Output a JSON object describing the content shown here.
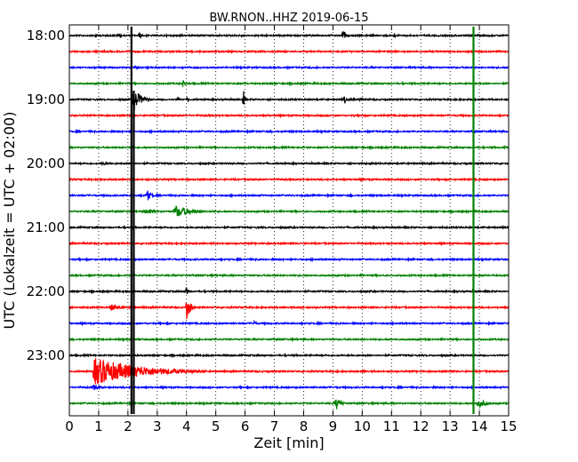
{
  "chart_data": {
    "type": "line",
    "title": "BW.RNON..HHZ 2019-06-15",
    "xlabel": "Zeit  [min]",
    "ylabel": "UTC (Lokalzeit = UTC + 02:00)",
    "xlim": [
      0,
      15
    ],
    "x_ticks": [
      "0",
      "1",
      "2",
      "3",
      "4",
      "5",
      "6",
      "7",
      "8",
      "9",
      "10",
      "11",
      "12",
      "13",
      "14",
      "15"
    ],
    "y_ticks": [
      "18:00",
      "19:00",
      "20:00",
      "21:00",
      "22:00",
      "23:00"
    ],
    "trace_interval_min": 15,
    "grid": "vertical dotted",
    "colors": [
      "#000000",
      "#ff0000",
      "#0000ff",
      "#008000"
    ],
    "traces": [
      {
        "start": "18:00",
        "events": [
          {
            "t": 0.9,
            "amp": 0.9,
            "dur": 0.1
          },
          {
            "t": 1.7,
            "amp": 0.6,
            "dur": 0.2
          },
          {
            "t": 2.4,
            "amp": 0.9,
            "dur": 0.15
          },
          {
            "t": 3.2,
            "amp": 0.3,
            "dur": 0.6
          },
          {
            "t": 3.8,
            "amp": 0.9,
            "dur": 0.1
          },
          {
            "t": 5.9,
            "amp": 0.5,
            "dur": 0.1
          },
          {
            "t": 8.3,
            "amp": 0.5,
            "dur": 0.1
          },
          {
            "t": 9.35,
            "amp": 2.0,
            "dur": 0.15
          },
          {
            "t": 11.1,
            "amp": 1.4,
            "dur": 0.05
          },
          {
            "t": 11.5,
            "amp": 0.3,
            "dur": 0.3
          }
        ]
      },
      {
        "start": "18:15",
        "events": [
          {
            "t": 6.3,
            "amp": 0.3,
            "dur": 0.1
          }
        ]
      },
      {
        "start": "18:30",
        "events": [
          {
            "t": 1.45,
            "amp": 0.3,
            "dur": 0.2
          },
          {
            "t": 2.3,
            "amp": 0.7,
            "dur": 0.1
          }
        ]
      },
      {
        "start": "18:45",
        "events": [
          {
            "t": 3.9,
            "amp": 2.0,
            "dur": 0.1
          },
          {
            "t": 8.1,
            "amp": 0.3,
            "dur": 0.2
          }
        ]
      },
      {
        "start": "19:00",
        "events": [
          {
            "t": 2.2,
            "amp": 2.8,
            "dur": 0.6
          },
          {
            "t": 3.7,
            "amp": 0.9,
            "dur": 0.1
          },
          {
            "t": 4.05,
            "amp": 0.8,
            "dur": 0.1
          },
          {
            "t": 5.95,
            "amp": 2.2,
            "dur": 0.1
          },
          {
            "t": 9.4,
            "amp": 1.5,
            "dur": 0.1
          },
          {
            "t": 9.7,
            "amp": 0.8,
            "dur": 0.1
          },
          {
            "t": 9.95,
            "amp": 0.9,
            "dur": 0.1
          }
        ]
      },
      {
        "start": "19:15",
        "events": []
      },
      {
        "start": "19:30",
        "events": []
      },
      {
        "start": "19:45",
        "events": [
          {
            "t": 1.6,
            "amp": 0.3,
            "dur": 0.1
          },
          {
            "t": 14.9,
            "amp": 0.6,
            "dur": 0.15
          }
        ]
      },
      {
        "start": "20:00",
        "events": [
          {
            "t": 1.1,
            "amp": 0.4,
            "dur": 1.2
          },
          {
            "t": 10.3,
            "amp": 0.6,
            "dur": 0.1
          }
        ]
      },
      {
        "start": "20:15",
        "events": [
          {
            "t": 2.7,
            "amp": 0.3,
            "dur": 0.1
          },
          {
            "t": 7.0,
            "amp": 0.4,
            "dur": 0.3
          }
        ]
      },
      {
        "start": "20:30",
        "events": [
          {
            "t": 2.65,
            "amp": 1.7,
            "dur": 0.3
          },
          {
            "t": 9.6,
            "amp": 0.4,
            "dur": 0.1
          },
          {
            "t": 10.8,
            "amp": 0.3,
            "dur": 0.1
          }
        ]
      },
      {
        "start": "20:45",
        "events": [
          {
            "t": 2.6,
            "amp": 0.8,
            "dur": 0.9
          },
          {
            "t": 3.6,
            "amp": 1.6,
            "dur": 1.4
          }
        ]
      },
      {
        "start": "21:00",
        "events": [
          {
            "t": 6.6,
            "amp": 0.5,
            "dur": 0.1
          }
        ]
      },
      {
        "start": "21:15",
        "events": []
      },
      {
        "start": "21:30",
        "events": []
      },
      {
        "start": "21:45",
        "events": [
          {
            "t": 8.6,
            "amp": 0.3,
            "dur": 0.1
          }
        ]
      },
      {
        "start": "22:00",
        "events": [
          {
            "t": 4.0,
            "amp": 2.2,
            "dur": 0.1
          }
        ]
      },
      {
        "start": "22:15",
        "events": [
          {
            "t": 1.4,
            "amp": 1.0,
            "dur": 0.8
          },
          {
            "t": 4.0,
            "amp": 3.3,
            "dur": 0.3
          },
          {
            "t": 7.9,
            "amp": 0.5,
            "dur": 0.2
          },
          {
            "t": 13.5,
            "amp": 0.3,
            "dur": 0.3
          }
        ]
      },
      {
        "start": "22:30",
        "events": [
          {
            "t": 6.3,
            "amp": 0.8,
            "dur": 0.15
          }
        ]
      },
      {
        "start": "22:45",
        "events": []
      },
      {
        "start": "23:00",
        "events": []
      },
      {
        "start": "23:15",
        "events": [
          {
            "t": 0.85,
            "amp": 3.5,
            "dur": 3.8
          },
          {
            "t": 9.1,
            "amp": 0.3,
            "dur": 0.2
          },
          {
            "t": 10.0,
            "amp": 0.4,
            "dur": 0.4
          }
        ]
      },
      {
        "start": "23:30",
        "events": [
          {
            "t": 0.8,
            "amp": 0.8,
            "dur": 0.8
          },
          {
            "t": 9.1,
            "amp": 0.4,
            "dur": 0.3
          }
        ]
      },
      {
        "start": "23:45",
        "events": [
          {
            "t": 9.1,
            "amp": 1.8,
            "dur": 0.4
          },
          {
            "t": 13.95,
            "amp": 1.4,
            "dur": 0.6
          }
        ]
      }
    ],
    "clipped_columns": [
      {
        "t": 2.12,
        "rows": [
          0,
          23
        ],
        "color": "#000000"
      },
      {
        "t": 2.2,
        "rows": [
          4,
          23
        ],
        "color": "#000000"
      },
      {
        "t": 13.8,
        "rows": [
          0,
          23
        ],
        "color": "#008000"
      }
    ]
  }
}
